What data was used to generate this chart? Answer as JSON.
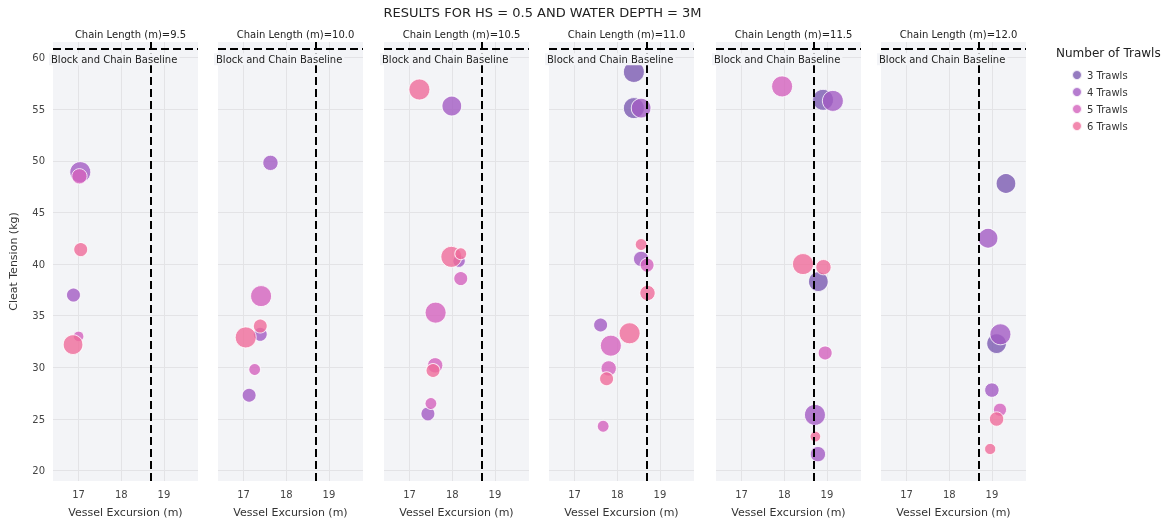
{
  "chart_data": [
    {
      "type": "bubble",
      "title": "Chain Length (m)=9.5",
      "xlabel": "Vessel Excursion (m)",
      "ylabel": "Cleat Tension (kg)",
      "annotations": [
        "RESULTS FOR HS = 0.5 AND WATER DEPTH = 3M"
      ],
      "xlim": [
        16.4,
        19.8
      ],
      "xticks": [
        17,
        18,
        19
      ],
      "ylim": [
        19,
        61.5
      ],
      "yticks": [
        20,
        25,
        30,
        35,
        40,
        45,
        50,
        55,
        60
      ],
      "grid": true,
      "ref_lines": [
        {
          "axis": "x",
          "value": 18.7,
          "color": "#000000",
          "line_style": "dashed"
        },
        {
          "axis": "y",
          "value": 60.8,
          "label": "Block and Chain Baseline",
          "color": "#000000",
          "line_style": "dashed"
        }
      ],
      "series": [
        {
          "color": "#a25bc3",
          "x": [
            17.04,
            16.88
          ],
          "values": [
            48.9,
            37.0
          ],
          "sizes": [
            1,
            0.44
          ]
        },
        {
          "color": "#d361bd",
          "x": [
            17.02,
            17.0
          ],
          "values": [
            48.5,
            33.0
          ],
          "sizes": [
            0.53,
            0.25
          ]
        },
        {
          "color": "#ef6b9a",
          "x": [
            17.05,
            16.87
          ],
          "values": [
            41.4,
            32.2
          ],
          "sizes": [
            0.44,
            0.88
          ]
        }
      ]
    },
    {
      "type": "bubble",
      "title": "Chain Length (m)=10.0",
      "xlabel": "Vessel Excursion (m)",
      "xlim": [
        16.4,
        19.8
      ],
      "xticks": [
        17,
        18,
        19
      ],
      "ylim": [
        19,
        61.5
      ],
      "yticks": [
        20,
        25,
        30,
        35,
        40,
        45,
        50,
        55,
        60
      ],
      "tick_labels": "x",
      "grid": true,
      "ref_lines": [
        {
          "axis": "x",
          "value": 18.7,
          "color": "#000000",
          "line_style": "dashed"
        },
        {
          "axis": "y",
          "value": 60.8,
          "label": "Block and Chain Baseline",
          "color": "#000000",
          "line_style": "dashed"
        }
      ],
      "series": [
        {
          "color": "#a25bc3",
          "x": [
            17.63,
            17.39,
            17.13
          ],
          "values": [
            49.8,
            33.2,
            27.3
          ],
          "sizes": [
            0.53,
            0.44,
            0.44
          ]
        },
        {
          "color": "#d361bd",
          "x": [
            17.41,
            17.26
          ],
          "values": [
            36.9,
            29.8
          ],
          "sizes": [
            1,
            0.32
          ]
        },
        {
          "color": "#ef6b9a",
          "x": [
            17.39,
            17.05
          ],
          "values": [
            34.0,
            32.9
          ],
          "sizes": [
            0.44,
            1
          ]
        }
      ]
    },
    {
      "type": "bubble",
      "title": "Chain Length (m)=10.5",
      "xlabel": "Vessel Excursion (m)",
      "xlim": [
        16.4,
        19.8
      ],
      "xticks": [
        17,
        18,
        19
      ],
      "ylim": [
        19,
        61.5
      ],
      "yticks": [
        20,
        25,
        30,
        35,
        40,
        45,
        50,
        55,
        60
      ],
      "tick_labels": "x",
      "grid": true,
      "ref_lines": [
        {
          "axis": "x",
          "value": 18.7,
          "color": "#000000",
          "line_style": "dashed"
        },
        {
          "axis": "y",
          "value": 60.8,
          "label": "Block and Chain Baseline",
          "color": "#000000",
          "line_style": "dashed"
        }
      ],
      "series": [
        {
          "color": "#a25bc3",
          "x": [
            17.99,
            18.16,
            17.43
          ],
          "values": [
            55.3,
            40.3,
            25.5
          ],
          "sizes": [
            0.88,
            0.36,
            0.44
          ]
        },
        {
          "color": "#d361bd",
          "x": [
            18.2,
            17.61,
            17.6,
            17.5
          ],
          "values": [
            38.6,
            35.3,
            30.2,
            26.5
          ],
          "sizes": [
            0.44,
            1,
            0.53,
            0.32
          ]
        },
        {
          "color": "#ef6b9a",
          "x": [
            17.23,
            17.98,
            18.2,
            17.55
          ],
          "values": [
            56.9,
            40.7,
            41.0,
            29.7
          ],
          "sizes": [
            1,
            1,
            0.32,
            0.44
          ]
        }
      ]
    },
    {
      "type": "bubble",
      "title": "Chain Length (m)=11.0",
      "xlabel": "Vessel Excursion (m)",
      "xlim": [
        16.4,
        19.8
      ],
      "xticks": [
        17,
        18,
        19
      ],
      "ylim": [
        19,
        61.5
      ],
      "yticks": [
        20,
        25,
        30,
        35,
        40,
        45,
        50,
        55,
        60
      ],
      "tick_labels": "x",
      "grid": true,
      "ref_lines": [
        {
          "axis": "x",
          "value": 18.7,
          "color": "#000000",
          "line_style": "dashed"
        },
        {
          "axis": "y",
          "value": 60.8,
          "label": "Block and Chain Baseline",
          "color": "#000000",
          "line_style": "dashed"
        }
      ],
      "series": [
        {
          "color": "#7b5ab0",
          "x": [
            18.39,
            18.39
          ],
          "values": [
            58.6,
            55.1
          ],
          "sizes": [
            1,
            1
          ]
        },
        {
          "color": "#a25bc3",
          "x": [
            18.56,
            18.56,
            17.61
          ],
          "values": [
            55.1,
            40.5,
            34.1
          ],
          "sizes": [
            0.88,
            0.53,
            0.44
          ]
        },
        {
          "color": "#d361bd",
          "x": [
            18.7,
            17.85,
            17.8,
            17.67
          ],
          "values": [
            39.9,
            32.1,
            29.9,
            24.3
          ],
          "sizes": [
            0.44,
            1,
            0.53,
            0.32
          ]
        },
        {
          "color": "#ef6b9a",
          "x": [
            18.56,
            18.71,
            18.29,
            17.75
          ],
          "values": [
            41.9,
            37.2,
            33.3,
            28.9
          ],
          "sizes": [
            0.32,
            0.53,
            1,
            0.44
          ]
        }
      ]
    },
    {
      "type": "bubble",
      "title": "Chain Length (m)=11.5",
      "xlabel": "Vessel Excursion (m)",
      "xlim": [
        16.4,
        19.8
      ],
      "xticks": [
        17,
        18,
        19
      ],
      "ylim": [
        19,
        61.5
      ],
      "yticks": [
        20,
        25,
        30,
        35,
        40,
        45,
        50,
        55,
        60
      ],
      "tick_labels": "x",
      "grid": true,
      "ref_lines": [
        {
          "axis": "x",
          "value": 18.7,
          "color": "#000000",
          "line_style": "dashed"
        },
        {
          "axis": "y",
          "value": 60.8,
          "label": "Block and Chain Baseline",
          "color": "#000000",
          "line_style": "dashed"
        }
      ],
      "series": [
        {
          "color": "#7b5ab0",
          "x": [
            18.91,
            18.8
          ],
          "values": [
            55.9,
            38.3
          ],
          "sizes": [
            1,
            0.88
          ]
        },
        {
          "color": "#a25bc3",
          "x": [
            19.14,
            18.72,
            18.79
          ],
          "values": [
            55.8,
            25.4,
            21.6
          ],
          "sizes": [
            1,
            1,
            0.53
          ]
        },
        {
          "color": "#d361bd",
          "x": [
            17.95,
            18.96
          ],
          "values": [
            57.2,
            31.4
          ],
          "sizes": [
            1,
            0.44
          ]
        },
        {
          "color": "#ef6b9a",
          "x": [
            18.44,
            18.92,
            18.73
          ],
          "values": [
            40.0,
            39.7,
            23.3
          ],
          "sizes": [
            1,
            0.53,
            0.25
          ]
        }
      ]
    },
    {
      "type": "bubble",
      "title": "Chain Length (m)=12.0",
      "xlabel": "Vessel Excursion (m)",
      "legend_title": "Number of Trawls",
      "legend": "right",
      "xlim": [
        16.4,
        19.8
      ],
      "xticks": [
        17,
        18,
        19
      ],
      "ylim": [
        19,
        61.5
      ],
      "yticks": [
        20,
        25,
        30,
        35,
        40,
        45,
        50,
        55,
        60
      ],
      "tick_labels": "x",
      "grid": true,
      "ref_lines": [
        {
          "axis": "x",
          "value": 18.7,
          "color": "#000000",
          "line_style": "dashed"
        },
        {
          "axis": "y",
          "value": 60.8,
          "label": "Block and Chain Baseline",
          "color": "#000000",
          "line_style": "dashed"
        }
      ],
      "series": [
        {
          "name": "3 Trawls",
          "color": "#7b5ab0",
          "x": [
            19.33,
            19.11
          ],
          "values": [
            47.8,
            32.3
          ],
          "sizes": [
            0.88,
            0.88
          ]
        },
        {
          "name": "4 Trawls",
          "color": "#a25bc3",
          "x": [
            18.91,
            19.2,
            19.0
          ],
          "values": [
            42.5,
            33.2,
            27.8
          ],
          "sizes": [
            0.88,
            1,
            0.47
          ]
        },
        {
          "name": "5 Trawls",
          "color": "#d361bd",
          "x": [
            19.19
          ],
          "values": [
            25.9
          ],
          "sizes": [
            0.39
          ]
        },
        {
          "name": "6 Trawls",
          "color": "#ef6b9a",
          "x": [
            19.11,
            18.96
          ],
          "values": [
            25.0,
            22.1
          ],
          "sizes": [
            0.47,
            0.28
          ]
        }
      ]
    }
  ]
}
